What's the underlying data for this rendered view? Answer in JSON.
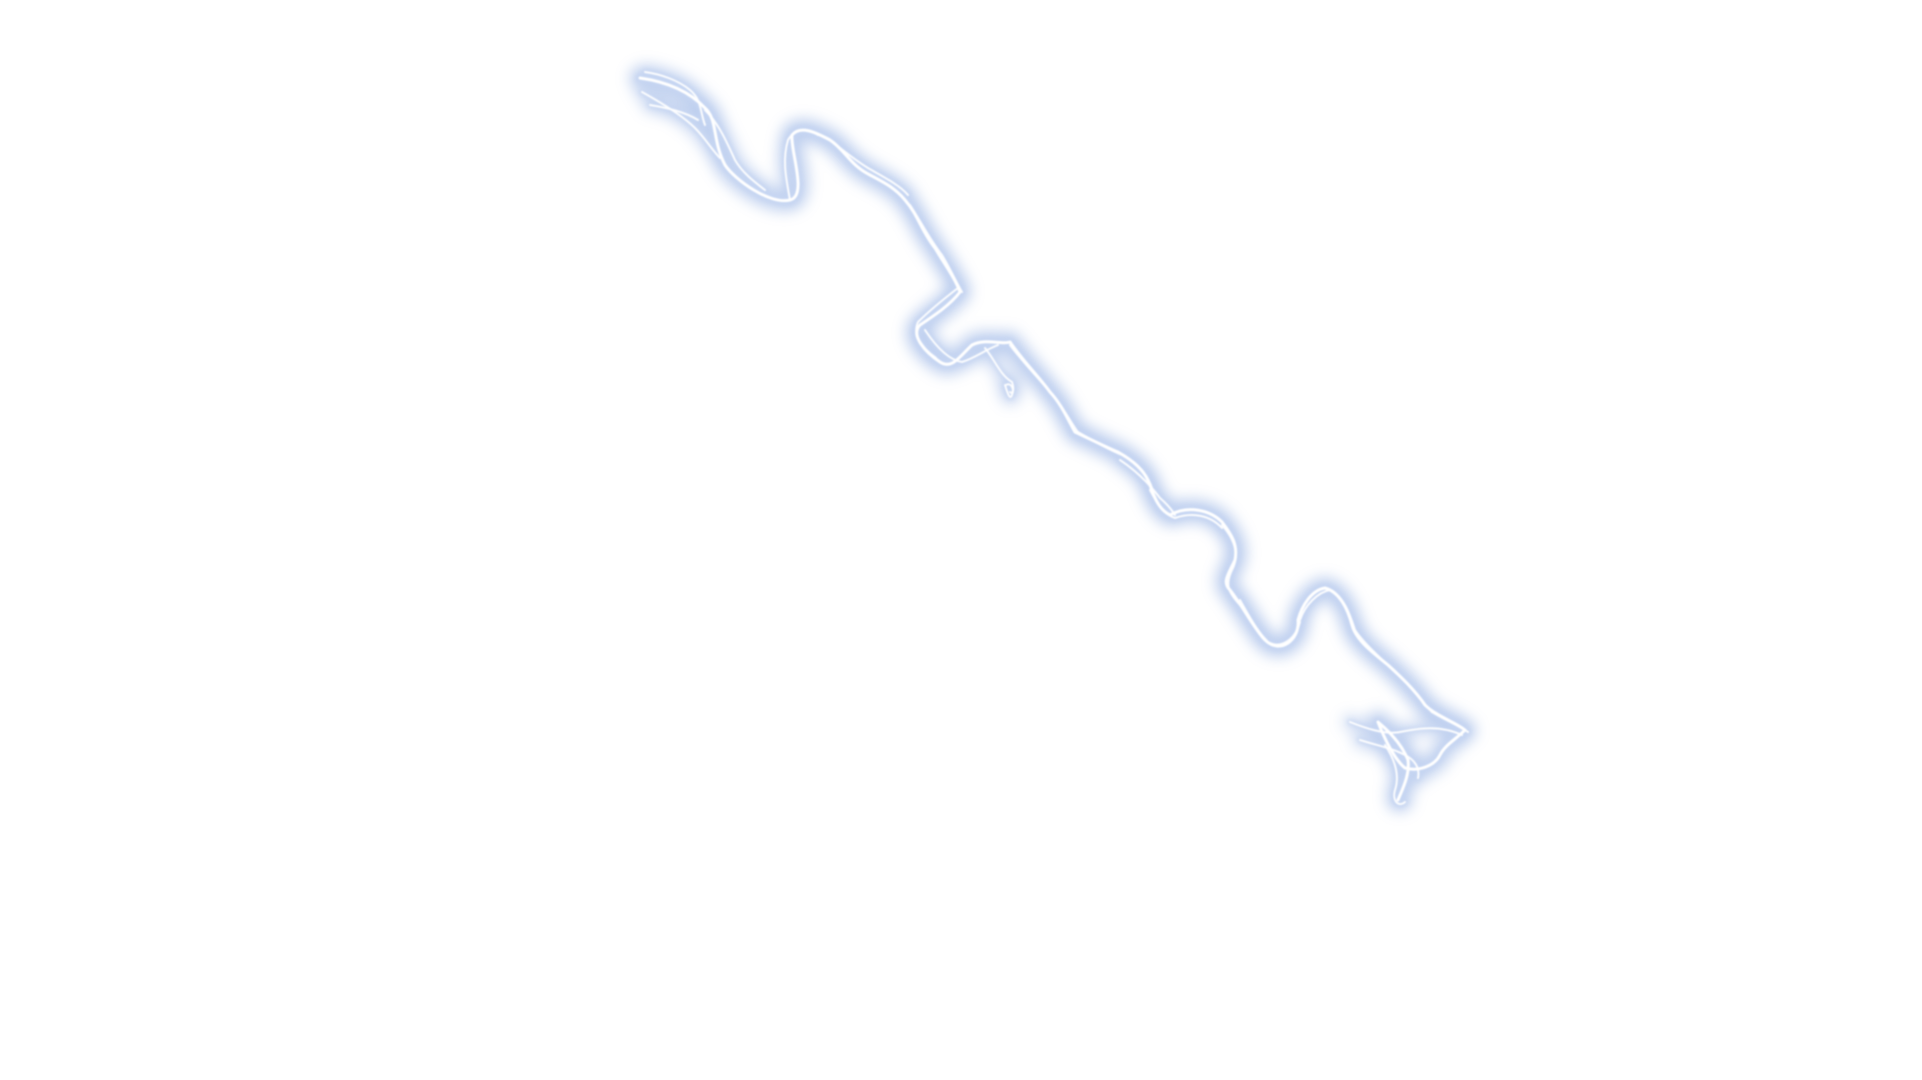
{
  "scene": {
    "subject_icon": "lightning-bolt-icon",
    "colors": {
      "background": "#ffffff",
      "glow": "#9fb8e6",
      "mid": "#c7d6f2",
      "core": "#ffffff"
    }
  }
}
